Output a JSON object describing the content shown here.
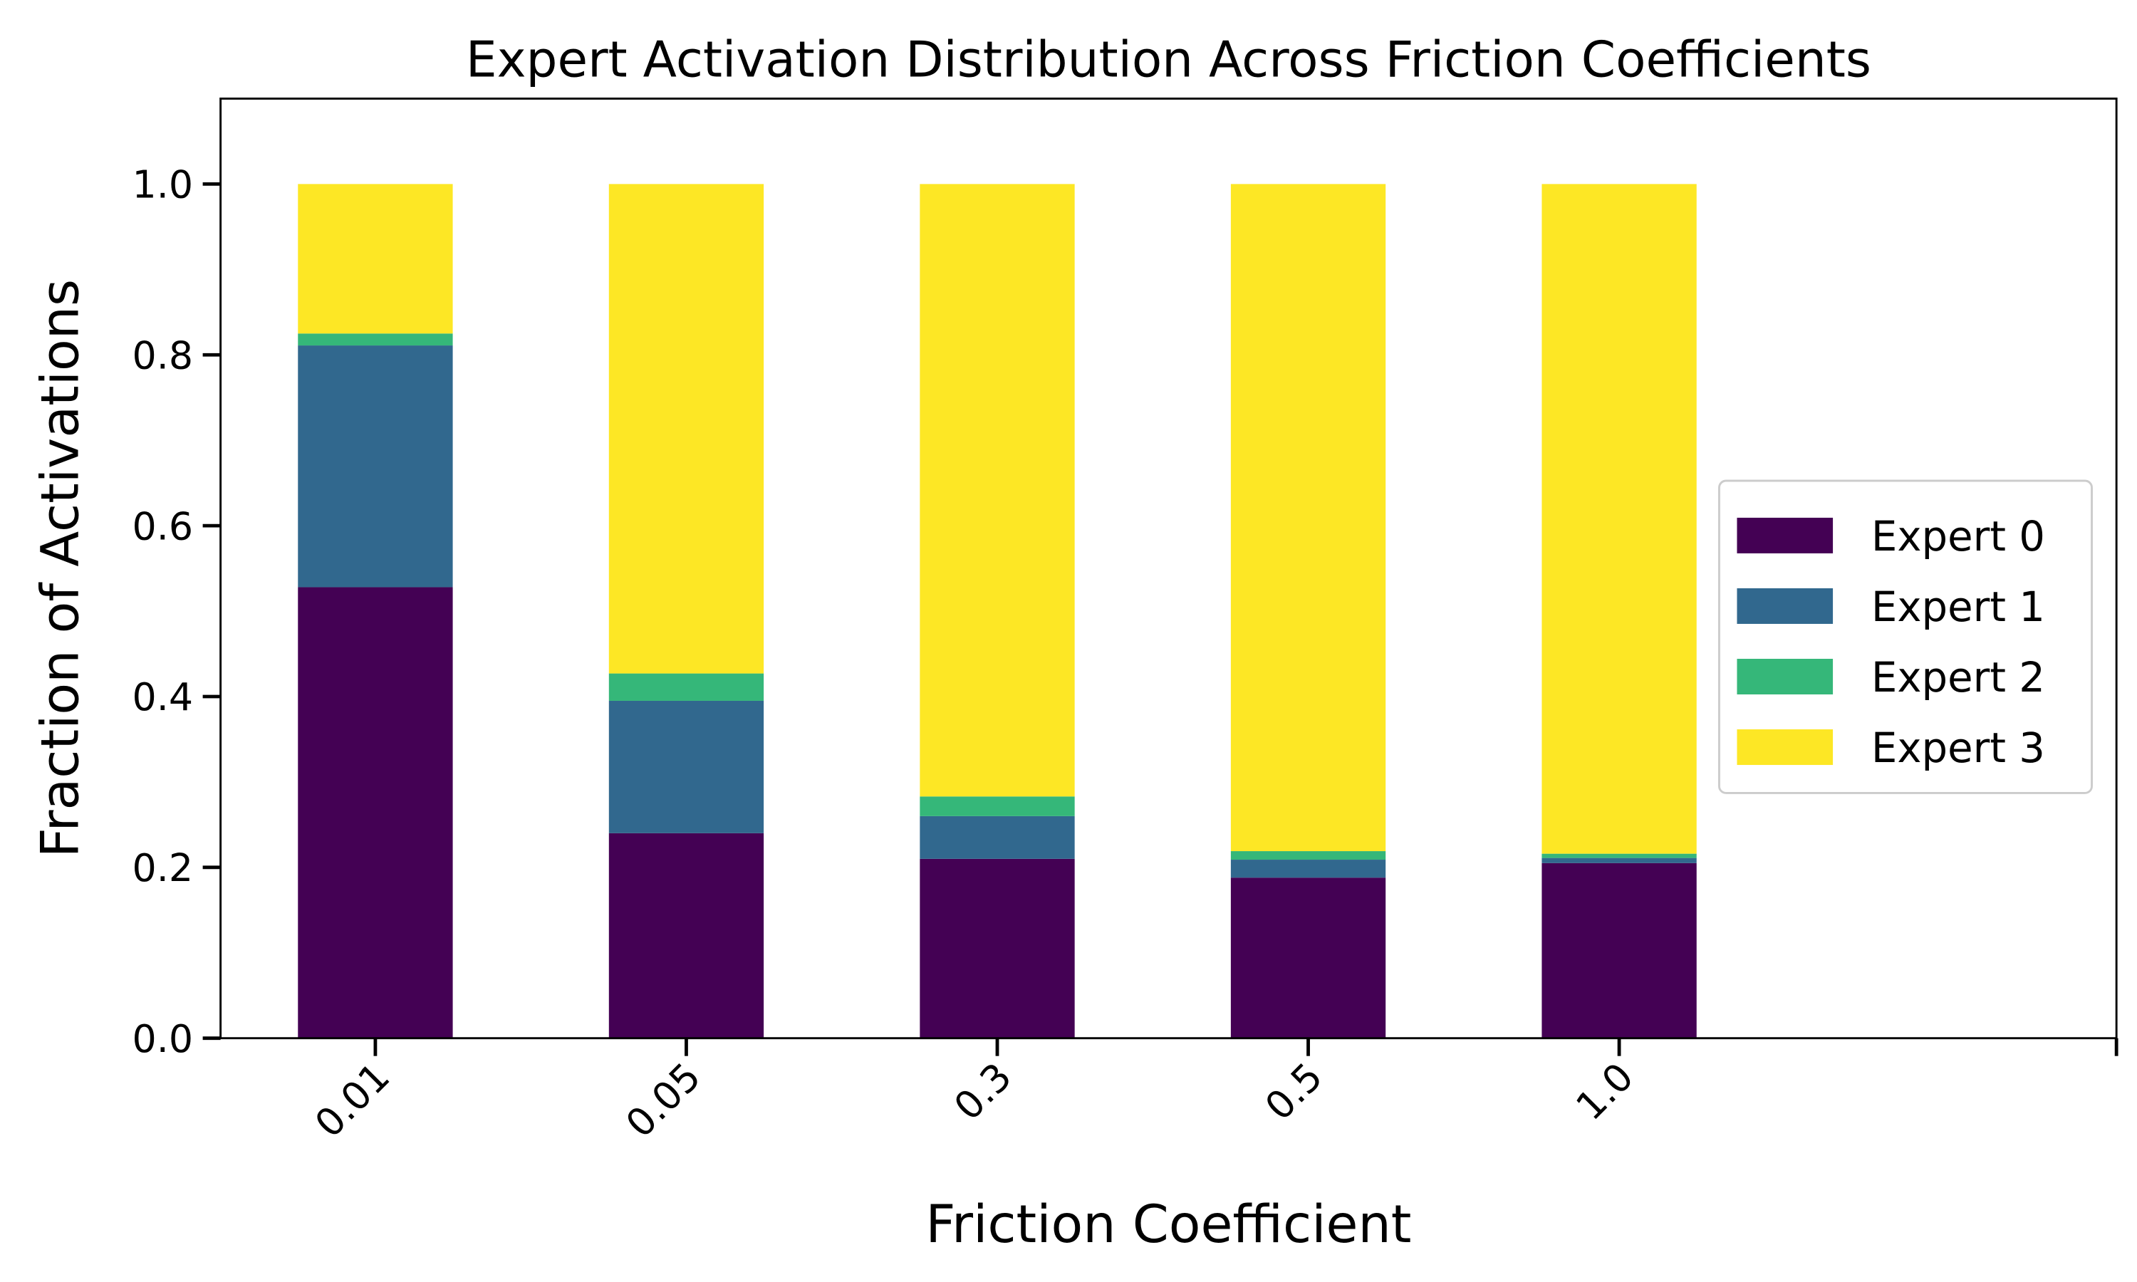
{
  "chart_data": {
    "type": "stacked_bar",
    "title": "Expert Activation Distribution Across Friction Coefficients",
    "x_label": "Friction Coefficient",
    "y_label": "Fraction of Activations",
    "categories": [
      "0.01",
      "0.05",
      "0.3",
      "0.5",
      "1.0"
    ],
    "series": [
      {
        "name": "Expert 0",
        "color": "#440154",
        "values": [
          0.528,
          0.24,
          0.21,
          0.188,
          0.205
        ]
      },
      {
        "name": "Expert 1",
        "color": "#31688e",
        "values": [
          0.283,
          0.155,
          0.05,
          0.021,
          0.006
        ]
      },
      {
        "name": "Expert 2",
        "color": "#35b779",
        "values": [
          0.014,
          0.032,
          0.023,
          0.01,
          0.005
        ]
      },
      {
        "name": "Expert 3",
        "color": "#fde725",
        "values": [
          0.175,
          0.573,
          0.717,
          0.781,
          0.784
        ]
      }
    ],
    "ylim": [
      0,
      1.1
    ],
    "yticks": [
      {
        "value": 0,
        "label": "0.0"
      },
      0.2,
      0.4,
      0.6,
      0.8,
      {
        "value": 1,
        "label": "1.0"
      }
    ],
    "legend": "center right"
  }
}
